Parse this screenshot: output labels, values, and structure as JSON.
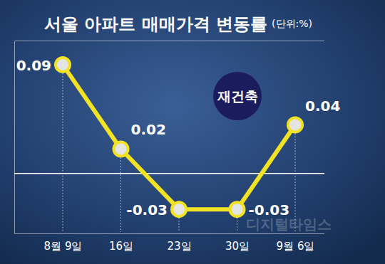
{
  "chart_data": {
    "type": "line",
    "title": "서울 아파트 매매가격 변동률",
    "subtitle": "(단위:%)",
    "annotations": [
      "재건축",
      "디지털타임스"
    ],
    "categories": [
      "8월 9일",
      "16일",
      "23일",
      "30일",
      "9월 6일"
    ],
    "values": [
      0.09,
      0.02,
      -0.03,
      -0.03,
      0.04
    ],
    "color": "#f2e224",
    "marker": "circle",
    "ylim": [
      -0.05,
      0.11
    ],
    "yticks": [
      0
    ],
    "grid": true,
    "tick_labels": "x",
    "data_labels": true
  }
}
